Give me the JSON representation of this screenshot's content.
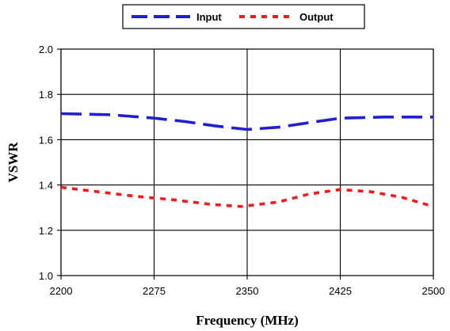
{
  "chart_data": {
    "type": "line",
    "title": "",
    "xlabel": "Frequency (MHz)",
    "ylabel": "VSWR",
    "x": [
      2200,
      2250,
      2300,
      2350,
      2400,
      2450,
      2500
    ],
    "xticks": [
      "2200",
      "2275",
      "2350",
      "2425",
      "2500"
    ],
    "yticks": [
      "1.0",
      "1.2",
      "1.4",
      "1.6",
      "1.8",
      "2.0"
    ],
    "xlim": [
      2200,
      2500
    ],
    "ylim": [
      1.0,
      2.0
    ],
    "grid": true,
    "legend_position": "top",
    "series": [
      {
        "name": "Input",
        "color": "#1f1fd6",
        "dash": "long-dash",
        "x": [
          2200,
          2240,
          2275,
          2300,
          2325,
          2350,
          2375,
          2400,
          2425,
          2460,
          2500
        ],
        "values": [
          1.715,
          1.71,
          1.695,
          1.68,
          1.66,
          1.645,
          1.655,
          1.675,
          1.695,
          1.7,
          1.7
        ]
      },
      {
        "name": "Output",
        "color": "#ee1c1c",
        "dash": "dotted",
        "x": [
          2200,
          2230,
          2260,
          2290,
          2320,
          2345,
          2375,
          2400,
          2425,
          2450,
          2475,
          2500
        ],
        "values": [
          1.39,
          1.37,
          1.35,
          1.335,
          1.315,
          1.305,
          1.325,
          1.36,
          1.38,
          1.37,
          1.345,
          1.305
        ]
      }
    ]
  }
}
